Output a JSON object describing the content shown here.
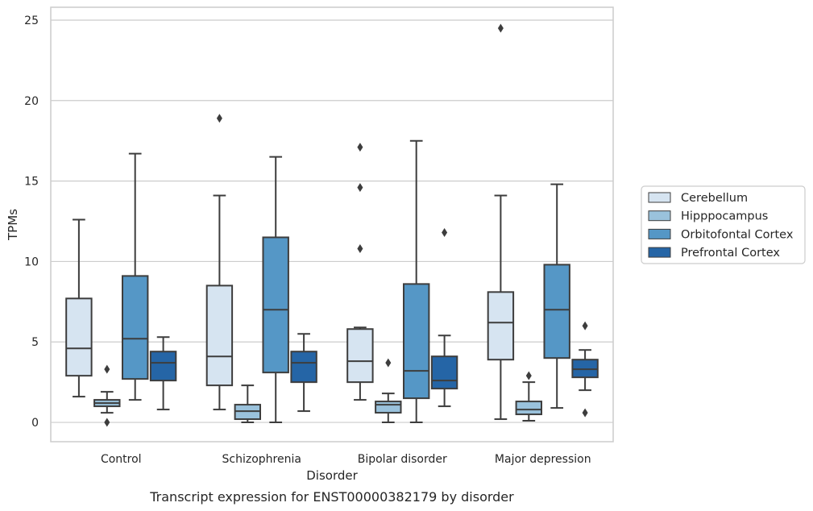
{
  "caption": "Transcript expression for ENST00000382179 by disorder",
  "chart_data": {
    "type": "box",
    "xlabel": "Disorder",
    "ylabel": "TPMs",
    "ylim": [
      -1.2,
      25.8
    ],
    "yticks": [
      0,
      5,
      10,
      15,
      20,
      25
    ],
    "categories": [
      "Control",
      "Schizophrenia",
      "Bipolar disorder",
      "Major depression"
    ],
    "grid": true,
    "legend_position": "right",
    "series": [
      {
        "name": "Cerebellum",
        "color": "#d6e4f1",
        "boxes": [
          {
            "whislo": 1.6,
            "q1": 2.9,
            "med": 4.6,
            "q3": 7.7,
            "whishi": 12.6,
            "fliers": []
          },
          {
            "whislo": 0.8,
            "q1": 2.3,
            "med": 4.1,
            "q3": 8.5,
            "whishi": 14.1,
            "fliers": [
              18.9
            ]
          },
          {
            "whislo": 1.4,
            "q1": 2.5,
            "med": 3.8,
            "q3": 5.8,
            "whishi": 5.9,
            "fliers": [
              10.8,
              14.6,
              17.1
            ]
          },
          {
            "whislo": 0.2,
            "q1": 3.9,
            "med": 6.2,
            "q3": 8.1,
            "whishi": 14.1,
            "fliers": [
              24.5
            ]
          }
        ]
      },
      {
        "name": "Hipppocampus",
        "color": "#9ac2dc",
        "boxes": [
          {
            "whislo": 0.6,
            "q1": 1.0,
            "med": 1.2,
            "q3": 1.4,
            "whishi": 1.9,
            "fliers": [
              3.3,
              0.0
            ]
          },
          {
            "whislo": 0.0,
            "q1": 0.2,
            "med": 0.7,
            "q3": 1.1,
            "whishi": 2.3,
            "fliers": []
          },
          {
            "whislo": 0.0,
            "q1": 0.6,
            "med": 1.1,
            "q3": 1.3,
            "whishi": 1.8,
            "fliers": [
              3.7
            ]
          },
          {
            "whislo": 0.1,
            "q1": 0.5,
            "med": 0.8,
            "q3": 1.3,
            "whishi": 2.5,
            "fliers": [
              2.9
            ]
          }
        ]
      },
      {
        "name": "Orbitofontal Cortex",
        "color": "#5597c6",
        "boxes": [
          {
            "whislo": 1.4,
            "q1": 2.7,
            "med": 5.2,
            "q3": 9.1,
            "whishi": 16.7,
            "fliers": []
          },
          {
            "whislo": 0.0,
            "q1": 3.1,
            "med": 7.0,
            "q3": 11.5,
            "whishi": 16.5,
            "fliers": []
          },
          {
            "whislo": 0.0,
            "q1": 1.5,
            "med": 3.2,
            "q3": 8.6,
            "whishi": 17.5,
            "fliers": []
          },
          {
            "whislo": 0.9,
            "q1": 4.0,
            "med": 7.0,
            "q3": 9.8,
            "whishi": 14.8,
            "fliers": []
          }
        ]
      },
      {
        "name": "Prefrontal Cortex",
        "color": "#2565a6",
        "boxes": [
          {
            "whislo": 0.8,
            "q1": 2.6,
            "med": 3.7,
            "q3": 4.4,
            "whishi": 5.3,
            "fliers": []
          },
          {
            "whislo": 0.7,
            "q1": 2.5,
            "med": 3.7,
            "q3": 4.4,
            "whishi": 5.5,
            "fliers": []
          },
          {
            "whislo": 1.0,
            "q1": 2.1,
            "med": 2.6,
            "q3": 4.1,
            "whishi": 5.4,
            "fliers": [
              11.8
            ]
          },
          {
            "whislo": 2.0,
            "q1": 2.8,
            "med": 3.3,
            "q3": 3.9,
            "whishi": 4.5,
            "fliers": [
              6.0,
              0.6
            ]
          }
        ]
      }
    ]
  }
}
